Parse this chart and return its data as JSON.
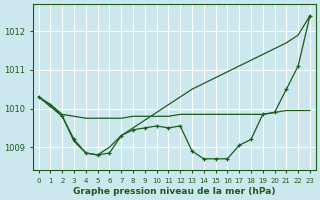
{
  "x": [
    0,
    1,
    2,
    3,
    4,
    5,
    6,
    7,
    8,
    9,
    10,
    11,
    12,
    13,
    14,
    15,
    16,
    17,
    18,
    19,
    20,
    21,
    22,
    23
  ],
  "series_smooth": [
    1010.3,
    1010.1,
    1009.85,
    1009.8,
    1009.75,
    1009.75,
    1009.75,
    1009.75,
    1009.8,
    1009.8,
    1009.8,
    1009.8,
    1009.85,
    1009.85,
    1009.85,
    1009.85,
    1009.85,
    1009.85,
    1009.85,
    1009.85,
    1009.9,
    1009.95,
    1009.95,
    1009.95
  ],
  "series_markers": [
    1010.3,
    1010.1,
    1009.8,
    1009.2,
    1008.85,
    1008.8,
    1008.85,
    1009.3,
    1009.45,
    1009.5,
    1009.55,
    1009.5,
    1009.55,
    1008.9,
    1008.7,
    1008.7,
    1008.7,
    1009.05,
    1009.2,
    1009.85,
    1009.9,
    1010.5,
    1011.1,
    1012.4
  ],
  "series_rising": [
    1010.3,
    1010.05,
    1009.8,
    1009.15,
    1008.85,
    1008.8,
    1009.0,
    1009.3,
    1009.5,
    1009.7,
    1009.9,
    1010.1,
    1010.3,
    1010.5,
    1010.65,
    1010.8,
    1010.95,
    1011.1,
    1011.25,
    1011.4,
    1011.55,
    1011.7,
    1011.9,
    1012.4
  ],
  "background_color": "#cce8ee",
  "grid_color": "#ffffff",
  "line_color": "#1a5c1a",
  "title": "Graphe pression niveau de la mer (hPa)",
  "xlabel_ticks": [
    "0",
    "1",
    "2",
    "3",
    "4",
    "5",
    "6",
    "7",
    "8",
    "9",
    "10",
    "11",
    "12",
    "13",
    "14",
    "15",
    "16",
    "17",
    "18",
    "19",
    "20",
    "21",
    "22",
    "23"
  ],
  "ylim": [
    1008.4,
    1012.7
  ],
  "yticks": [
    1009,
    1010,
    1011,
    1012
  ]
}
